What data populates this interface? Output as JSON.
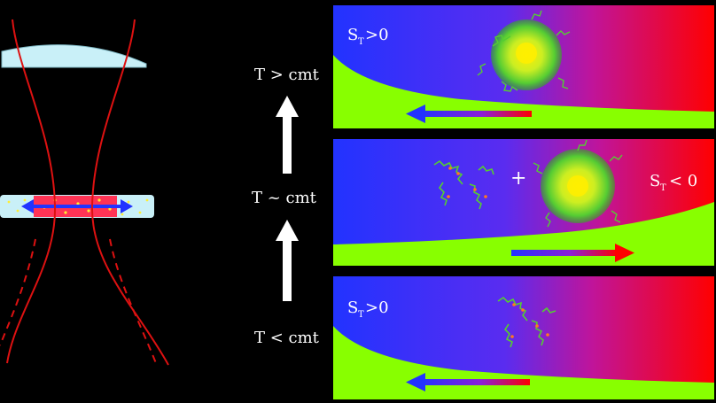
{
  "labels": {
    "t_high": "T > cmt",
    "t_mid": "T ~ cmt",
    "t_low": "T < cmt",
    "panel1_s": "S",
    "panel1_sub": "T",
    "panel1_rel": ">0",
    "panel2_s": "S",
    "panel2_sub": "T",
    "panel2_rel": "< 0",
    "panel3_s": "S",
    "panel3_sub": "T",
    "panel3_rel": ">0",
    "plus": "+"
  },
  "colors": {
    "hot": "#ff0000",
    "cold": "#2233ff",
    "mid": "#9a18c8",
    "solvent": "#88ff00",
    "cell": "#bfeef5",
    "laser": "#dd1111",
    "micelle_outer": "#66dd22",
    "micelle_core": "#ffee00",
    "chain": "#55cc33",
    "chain_bead": "#ff7722"
  }
}
